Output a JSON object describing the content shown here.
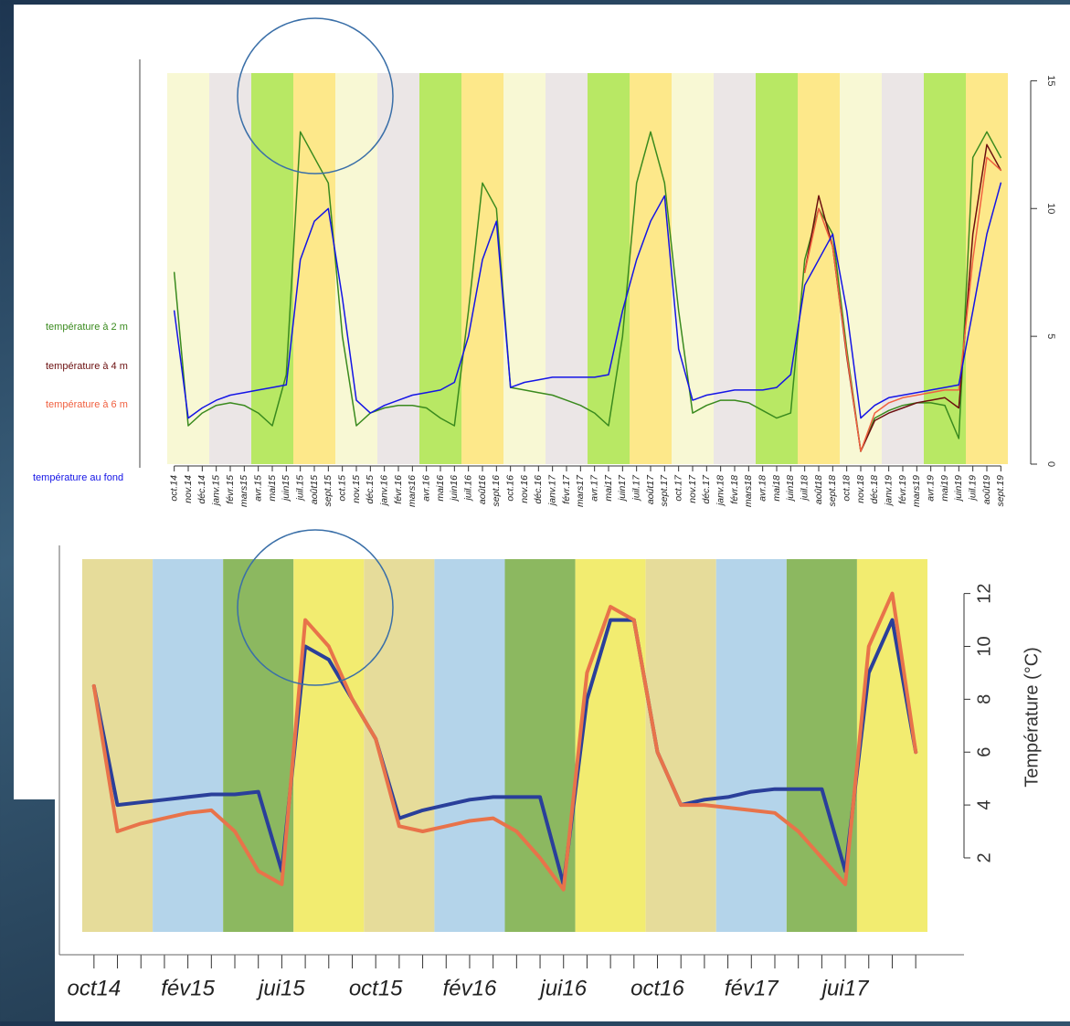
{
  "chart_data": [
    {
      "type": "line",
      "categories": [
        "oct.14",
        "nov.14",
        "déc.14",
        "janv.15",
        "févr.15",
        "mars15",
        "avr.15",
        "mai15",
        "juin15",
        "juil.15",
        "août15",
        "sept.15",
        "oct.15",
        "nov.15",
        "déc.15",
        "janv.16",
        "févr.16",
        "mars16",
        "avr.16",
        "mai16",
        "juin16",
        "juil.16",
        "août16",
        "sept.16",
        "oct.16",
        "nov.16",
        "déc.16",
        "janv.17",
        "févr.17",
        "mars17",
        "avr.17",
        "mai17",
        "juin17",
        "juil.17",
        "août17",
        "sept.17",
        "oct.17",
        "nov.17",
        "déc.17",
        "janv.18",
        "févr.18",
        "mars18",
        "avr.18",
        "mai18",
        "juin18",
        "juil.18",
        "août18",
        "sept.18",
        "oct.18",
        "nov.18",
        "déc.18",
        "janv.19",
        "févr.19",
        "mars19",
        "avr.19",
        "mai19",
        "juin19",
        "juil.19",
        "août19",
        "sept.19"
      ],
      "series": [
        {
          "name": "température à 2 m",
          "color": "#3a8a1e",
          "values": [
            7.5,
            1.5,
            2.0,
            2.3,
            2.4,
            2.3,
            2.0,
            1.5,
            3.5,
            13,
            12,
            11,
            5,
            1.5,
            2.0,
            2.2,
            2.3,
            2.3,
            2.2,
            1.8,
            1.5,
            6,
            11,
            10,
            3.0,
            2.9,
            2.8,
            2.7,
            2.5,
            2.3,
            2.0,
            1.5,
            5,
            11,
            13,
            11,
            6,
            2.0,
            2.3,
            2.5,
            2.5,
            2.4,
            2.1,
            1.8,
            2.0,
            8,
            10,
            9,
            4.5,
            0.5,
            1.8,
            2.1,
            2.3,
            2.4,
            2.4,
            2.3,
            1.0,
            12,
            13,
            12
          ]
        },
        {
          "name": "température à 4 m",
          "color": "#6b0f0f",
          "values": [
            null,
            null,
            null,
            null,
            null,
            null,
            null,
            null,
            null,
            null,
            null,
            null,
            null,
            null,
            null,
            null,
            null,
            null,
            null,
            null,
            null,
            null,
            null,
            null,
            null,
            null,
            null,
            null,
            null,
            null,
            null,
            null,
            null,
            null,
            null,
            null,
            null,
            null,
            null,
            null,
            null,
            null,
            null,
            null,
            null,
            7.5,
            10.5,
            8.5,
            4.2,
            0.5,
            1.7,
            2.0,
            2.2,
            2.4,
            2.5,
            2.6,
            2.2,
            9,
            12.5,
            11.5
          ]
        },
        {
          "name": "température à 6 m",
          "color": "#f06040",
          "values": [
            null,
            null,
            null,
            null,
            null,
            null,
            null,
            null,
            null,
            null,
            null,
            null,
            null,
            null,
            null,
            null,
            null,
            null,
            null,
            null,
            null,
            null,
            null,
            null,
            null,
            null,
            null,
            null,
            null,
            null,
            null,
            null,
            null,
            null,
            null,
            null,
            null,
            null,
            null,
            null,
            null,
            null,
            null,
            null,
            null,
            7.5,
            10,
            8.5,
            4.3,
            0.5,
            2.0,
            2.4,
            2.6,
            2.7,
            2.8,
            2.9,
            2.9,
            8,
            12,
            11.5
          ]
        },
        {
          "name": "température au fond",
          "color": "#1414e6",
          "values": [
            6,
            1.8,
            2.2,
            2.5,
            2.7,
            2.8,
            2.9,
            3.0,
            3.1,
            8,
            9.5,
            10,
            6.5,
            2.5,
            2.0,
            2.3,
            2.5,
            2.7,
            2.8,
            2.9,
            3.2,
            5,
            8,
            9.5,
            3.0,
            3.2,
            3.3,
            3.4,
            3.4,
            3.4,
            3.4,
            3.5,
            6,
            8,
            9.5,
            10.5,
            4.5,
            2.5,
            2.7,
            2.8,
            2.9,
            2.9,
            2.9,
            3.0,
            3.5,
            7,
            8,
            9,
            6,
            1.8,
            2.3,
            2.6,
            2.7,
            2.8,
            2.9,
            3.0,
            3.1,
            6,
            9,
            11
          ]
        }
      ],
      "ylim": [
        0,
        15.3
      ],
      "yticks": [
        0,
        5,
        10,
        15
      ],
      "band_colors": [
        "#f8f8d4",
        "#ebe6e6",
        "#b8e864",
        "#fde88a"
      ]
    },
    {
      "type": "line",
      "categories": [
        "oct14",
        null,
        null,
        null,
        "fév15",
        null,
        null,
        null,
        "jui15",
        null,
        null,
        null,
        "oct15",
        null,
        null,
        null,
        "fév16",
        null,
        null,
        null,
        "jui16",
        null,
        null,
        null,
        "oct16",
        null,
        null,
        null,
        "fév17",
        null,
        null,
        null,
        "jui17",
        null,
        null,
        null
      ],
      "y_label": "Température (°C)",
      "series": [
        {
          "color": "#2a3f9a",
          "values": [
            8.5,
            4.0,
            4.1,
            4.2,
            4.3,
            4.4,
            4.4,
            4.5,
            1.5,
            10,
            9.5,
            8,
            6.5,
            3.5,
            3.8,
            4.0,
            4.2,
            4.3,
            4.3,
            4.3,
            1.0,
            8,
            11,
            11,
            6,
            4.0,
            4.2,
            4.3,
            4.5,
            4.6,
            4.6,
            4.6,
            1.5,
            9,
            11,
            6
          ]
        },
        {
          "color": "#e8734a",
          "values": [
            8.5,
            3.0,
            3.3,
            3.5,
            3.7,
            3.8,
            3.0,
            1.5,
            1.0,
            11,
            10,
            8,
            6.5,
            3.2,
            3.0,
            3.2,
            3.4,
            3.5,
            3.0,
            2.0,
            0.8,
            9,
            11.5,
            11,
            6,
            4.0,
            4.0,
            3.9,
            3.8,
            3.7,
            3.0,
            2.0,
            1.0,
            10,
            12,
            6
          ]
        }
      ],
      "ylim": [
        -0.8,
        13.3
      ],
      "yticks": [
        2,
        4,
        6,
        8,
        10,
        12
      ],
      "band_colors": [
        "#e6dc9a",
        "#b4d4ea",
        "#8cb860",
        "#f2ec70"
      ]
    }
  ]
}
